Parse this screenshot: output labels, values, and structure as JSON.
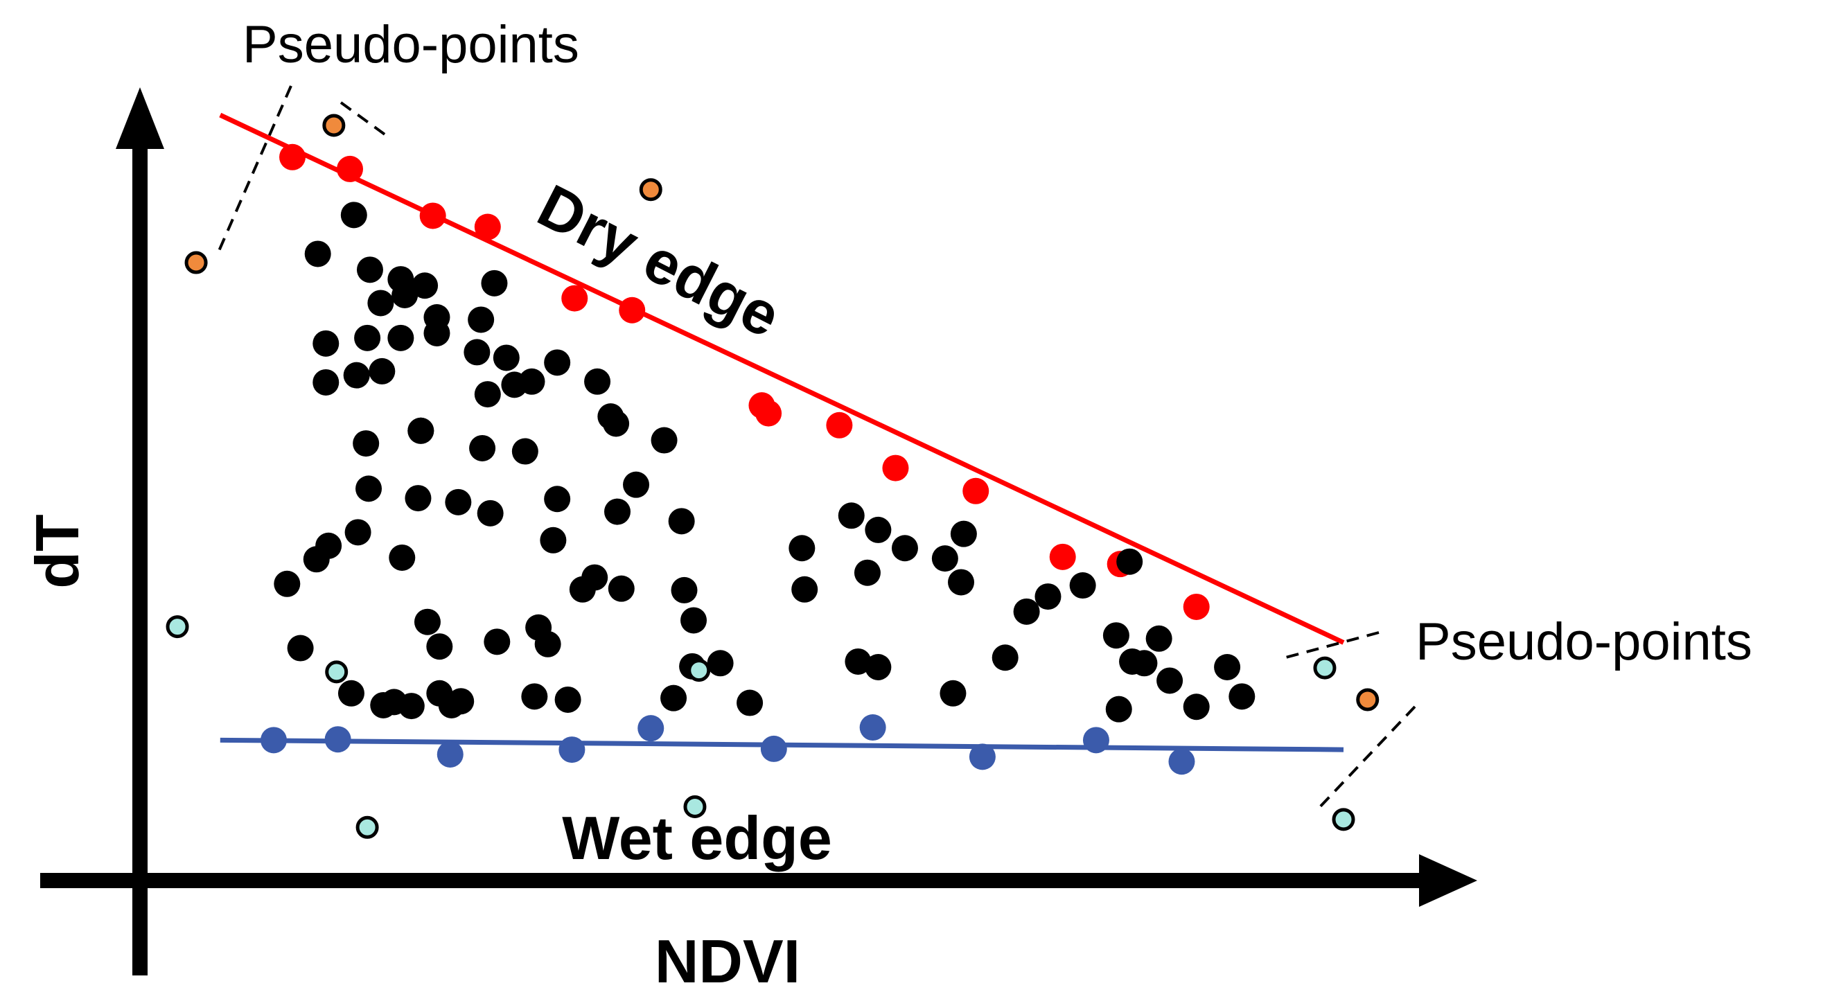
{
  "chart_data": {
    "type": "scatter",
    "title": "",
    "xlabel": "NDVI",
    "ylabel": "dT",
    "xlim": [
      0,
      1
    ],
    "ylim": [
      0,
      1
    ],
    "grid": false,
    "annotations": {
      "dry_edge_label": "Dry edge",
      "wet_edge_label": "Wet edge",
      "pseudo_left_label": "Pseudo-points",
      "pseudo_right_label": "Pseudo-points"
    },
    "colors": {
      "dry_edge": "#ff0000",
      "wet_edge": "#3b5bab",
      "dry_points": "#ff0000",
      "wet_points": "#3b5bab",
      "interior_points": "#000000",
      "pseudo_dry": "#f08a3c",
      "pseudo_wet": "#a9e8e0",
      "axis": "#000000"
    },
    "dry_edge_line": {
      "x": [
        0.06,
        0.9
      ],
      "y": [
        0.965,
        0.3
      ]
    },
    "wet_edge_line": {
      "x": [
        0.06,
        0.9
      ],
      "y": [
        0.177,
        0.165
      ]
    },
    "series": [
      {
        "name": "dry-edge points",
        "x": [
          0.114,
          0.157,
          0.219,
          0.26,
          0.325,
          0.368,
          0.47,
          0.465,
          0.523,
          0.565,
          0.625,
          0.69,
          0.733,
          0.79
        ],
        "y": [
          0.912,
          0.897,
          0.838,
          0.824,
          0.734,
          0.719,
          0.589,
          0.599,
          0.574,
          0.52,
          0.491,
          0.408,
          0.399,
          0.345
        ]
      },
      {
        "name": "wet-edge points",
        "x": [
          0.1,
          0.148,
          0.232,
          0.323,
          0.382,
          0.474,
          0.548,
          0.63,
          0.715,
          0.779
        ],
        "y": [
          0.177,
          0.178,
          0.159,
          0.165,
          0.192,
          0.166,
          0.193,
          0.156,
          0.177,
          0.15
        ]
      },
      {
        "name": "interior points",
        "x": [
          0.16,
          0.133,
          0.172,
          0.195,
          0.213,
          0.265,
          0.198,
          0.18,
          0.222,
          0.139,
          0.17,
          0.222,
          0.255,
          0.312,
          0.195,
          0.274,
          0.28,
          0.139,
          0.162,
          0.181,
          0.252,
          0.293,
          0.342,
          0.352,
          0.21,
          0.21,
          0.26,
          0.356,
          0.169,
          0.256,
          0.288,
          0.392,
          0.171,
          0.208,
          0.312,
          0.371,
          0.11,
          0.238,
          0.357,
          0.405,
          0.532,
          0.616,
          0.141,
          0.163,
          0.262,
          0.309,
          0.495,
          0.552,
          0.572,
          0.132,
          0.196,
          0.331,
          0.36,
          0.544,
          0.602,
          0.74,
          0.705,
          0.215,
          0.34,
          0.407,
          0.497,
          0.614,
          0.679,
          0.647,
          0.224,
          0.298,
          0.414,
          0.663,
          0.73,
          0.762,
          0.751,
          0.77,
          0.12,
          0.267,
          0.305,
          0.413,
          0.434,
          0.537,
          0.552,
          0.742,
          0.813,
          0.158,
          0.224,
          0.295,
          0.32,
          0.399,
          0.456,
          0.608,
          0.732,
          0.79,
          0.824,
          0.203,
          0.233,
          0.182,
          0.19,
          0.24
        ],
        "y": [
          0.839,
          0.79,
          0.77,
          0.758,
          0.75,
          0.753,
          0.738,
          0.728,
          0.71,
          0.677,
          0.684,
          0.69,
          0.707,
          0.653,
          0.684,
          0.659,
          0.625,
          0.628,
          0.637,
          0.642,
          0.666,
          0.629,
          0.629,
          0.585,
          0.567,
          0.567,
          0.613,
          0.576,
          0.551,
          0.545,
          0.541,
          0.555,
          0.494,
          0.482,
          0.481,
          0.499,
          0.374,
          0.477,
          0.465,
          0.453,
          0.46,
          0.437,
          0.422,
          0.439,
          0.463,
          0.429,
          0.419,
          0.442,
          0.419,
          0.405,
          0.407,
          0.367,
          0.368,
          0.388,
          0.406,
          0.402,
          0.372,
          0.326,
          0.382,
          0.366,
          0.367,
          0.376,
          0.358,
          0.281,
          0.295,
          0.319,
          0.328,
          0.339,
          0.309,
          0.305,
          0.274,
          0.252,
          0.293,
          0.301,
          0.298,
          0.27,
          0.274,
          0.276,
          0.269,
          0.276,
          0.269,
          0.236,
          0.236,
          0.232,
          0.228,
          0.23,
          0.224,
          0.236,
          0.216,
          0.219,
          0.232,
          0.22,
          0.221,
          0.221,
          0.225,
          0.226
        ]
      },
      {
        "name": "pseudo-points (dry)",
        "x": [
          0.145,
          0.042,
          0.382,
          0.918
        ],
        "y": [
          0.952,
          0.779,
          0.871,
          0.228
        ]
      },
      {
        "name": "pseudo-points (wet)",
        "x": [
          0.028,
          0.147,
          0.418,
          0.886,
          0.17,
          0.415,
          0.9
        ],
        "y": [
          0.32,
          0.263,
          0.265,
          0.268,
          0.067,
          0.093,
          0.077
        ]
      }
    ]
  }
}
